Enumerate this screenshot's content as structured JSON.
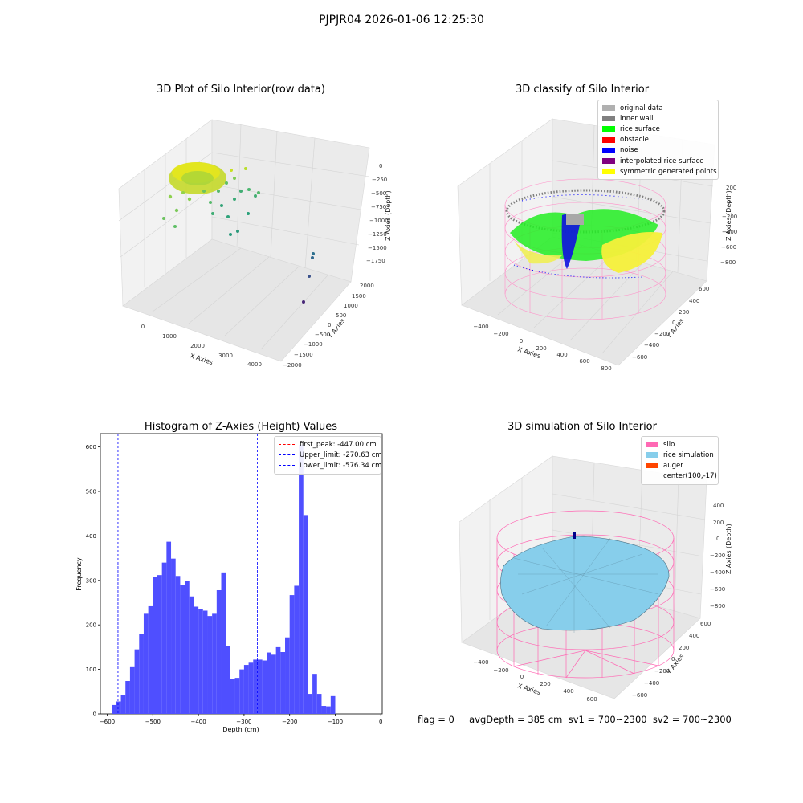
{
  "suptitle": "PJPJR04 2026-01-06 12:25:30",
  "footer": "flag = 0     avgDepth = 385 cm  sv1 = 700~2300  sv2 = 700~2300",
  "colors": {
    "original_data": "#b0b0b0",
    "inner_wall": "#808080",
    "rice_surface": "#00ff00",
    "obstacle": "#ff0000",
    "noise": "#0000ff",
    "interpolated_rice_surface": "#800080",
    "symmetric_generated_points": "#ffff00",
    "silo": "#ff69b4",
    "rice_simulation": "#87ceeb",
    "auger": "#ff4500",
    "hist_bar": "#4f4fff"
  },
  "chart_data": [
    {
      "type": "scatter",
      "projection": "3d",
      "title": "3D Plot of Silo Interior(row data)",
      "xlabel": "X Axies",
      "ylabel": "Y Axies",
      "zlabel": "Z Axies (Depth)",
      "x_ticks": [
        "0",
        "1000",
        "2000",
        "3000",
        "4000"
      ],
      "y_ticks": [
        "2000",
        "1500",
        "1000",
        "500",
        "0",
        "−500",
        "−1000",
        "−1500",
        "−2000"
      ],
      "z_ticks": [
        "0",
        "−250",
        "−500",
        "−750",
        "−1000",
        "−1250",
        "−1500",
        "−1750"
      ],
      "colormap": "viridis",
      "grid": true
    },
    {
      "type": "scatter",
      "projection": "3d",
      "title": "3D classify of Silo Interior",
      "xlabel": "X Axies",
      "ylabel": "Y Axies",
      "zlabel": "Z Axies (Depth)",
      "x_ticks": [
        "−400",
        "−200",
        "0",
        "200",
        "400",
        "600",
        "800"
      ],
      "y_ticks": [
        "600",
        "400",
        "200",
        "0",
        "−200",
        "−400",
        "−600"
      ],
      "z_ticks": [
        "200",
        "0",
        "−200",
        "−400",
        "−600",
        "−800"
      ],
      "legend": [
        "original data",
        "inner wall",
        "rice surface",
        "obstacle",
        "noise",
        "interpolated rice surface",
        "symmetric generated points"
      ],
      "legend_position": "top-right",
      "grid": true
    },
    {
      "type": "bar",
      "title": "Histogram of Z-Axies (Height) Values",
      "xlabel": "Depth (cm)",
      "ylabel": "Frequency",
      "xlim": [
        -615,
        3
      ],
      "ylim": [
        0,
        630
      ],
      "x_ticks": [
        -600,
        -500,
        -400,
        -300,
        -200,
        -100,
        0
      ],
      "y_ticks": [
        0,
        100,
        200,
        300,
        400,
        500,
        600
      ],
      "bin_start": -590,
      "bin_width": 10,
      "values": [
        20,
        28,
        42,
        74,
        105,
        145,
        180,
        225,
        242,
        307,
        312,
        340,
        387,
        349,
        310,
        290,
        298,
        264,
        241,
        235,
        232,
        220,
        225,
        278,
        318,
        153,
        78,
        81,
        100,
        110,
        115,
        122,
        122,
        120,
        138,
        133,
        150,
        139,
        172,
        267,
        288,
        605,
        447,
        45,
        90,
        45,
        18,
        17,
        40
      ],
      "bar_widths": [
        1,
        1,
        1,
        1,
        1,
        1,
        1,
        1,
        1,
        1,
        1,
        1,
        1,
        1,
        1,
        1,
        1,
        1,
        1,
        1,
        1,
        1,
        1,
        1,
        1,
        1,
        1,
        1,
        1,
        1,
        1,
        1,
        1,
        1,
        1,
        1,
        1,
        1,
        1,
        1,
        1,
        1,
        1,
        1,
        1,
        1,
        1,
        1,
        1
      ],
      "vlines": [
        {
          "label": "first_peak: -447.00 cm",
          "x": -447.0,
          "color": "#ff0000"
        },
        {
          "label": "Upper_limit: -270.63 cm",
          "x": -270.63,
          "color": "#0000ff"
        },
        {
          "label": "Lower_limit: -576.34 cm",
          "x": -576.34,
          "color": "#0000ff"
        }
      ],
      "legend_position": "top-right",
      "grid": false
    },
    {
      "type": "surface",
      "projection": "3d",
      "title": "3D simulation of Silo Interior",
      "xlabel": "X Axies",
      "ylabel": "Y Axies",
      "zlabel": "Z Axies (Depth)",
      "x_ticks": [
        "−400",
        "−200",
        "0",
        "200",
        "400",
        "600"
      ],
      "y_ticks": [
        "600",
        "400",
        "200",
        "0",
        "−200",
        "−400",
        "−600"
      ],
      "z_ticks": [
        "400",
        "200",
        "0",
        "−200",
        "−400",
        "−600",
        "−800"
      ],
      "legend": [
        "silo",
        "rice simulation",
        "auger",
        "center(100,-17)"
      ],
      "legend_position": "top-right",
      "grid": true
    }
  ]
}
